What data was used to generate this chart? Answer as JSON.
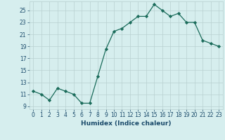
{
  "x": [
    0,
    1,
    2,
    3,
    4,
    5,
    6,
    7,
    8,
    9,
    10,
    11,
    12,
    13,
    14,
    15,
    16,
    17,
    18,
    19,
    20,
    21,
    22,
    23
  ],
  "y": [
    11.5,
    11.0,
    10.0,
    12.0,
    11.5,
    11.0,
    9.5,
    9.5,
    14.0,
    18.5,
    21.5,
    22.0,
    23.0,
    24.0,
    24.0,
    26.0,
    25.0,
    24.0,
    24.5,
    23.0,
    23.0,
    20.0,
    19.5,
    19.0
  ],
  "xlabel": "Humidex (Indice chaleur)",
  "xlim": [
    -0.5,
    23.5
  ],
  "ylim": [
    8.5,
    26.5
  ],
  "yticks": [
    9,
    11,
    13,
    15,
    17,
    19,
    21,
    23,
    25
  ],
  "xticks": [
    0,
    1,
    2,
    3,
    4,
    5,
    6,
    7,
    8,
    9,
    10,
    11,
    12,
    13,
    14,
    15,
    16,
    17,
    18,
    19,
    20,
    21,
    22,
    23
  ],
  "line_color": "#1a6b5a",
  "marker": "D",
  "marker_size": 2.2,
  "bg_color": "#d6eeee",
  "grid_color": "#b8d0d0",
  "label_color": "#1a4a6a",
  "tick_color": "#1a4a6a"
}
